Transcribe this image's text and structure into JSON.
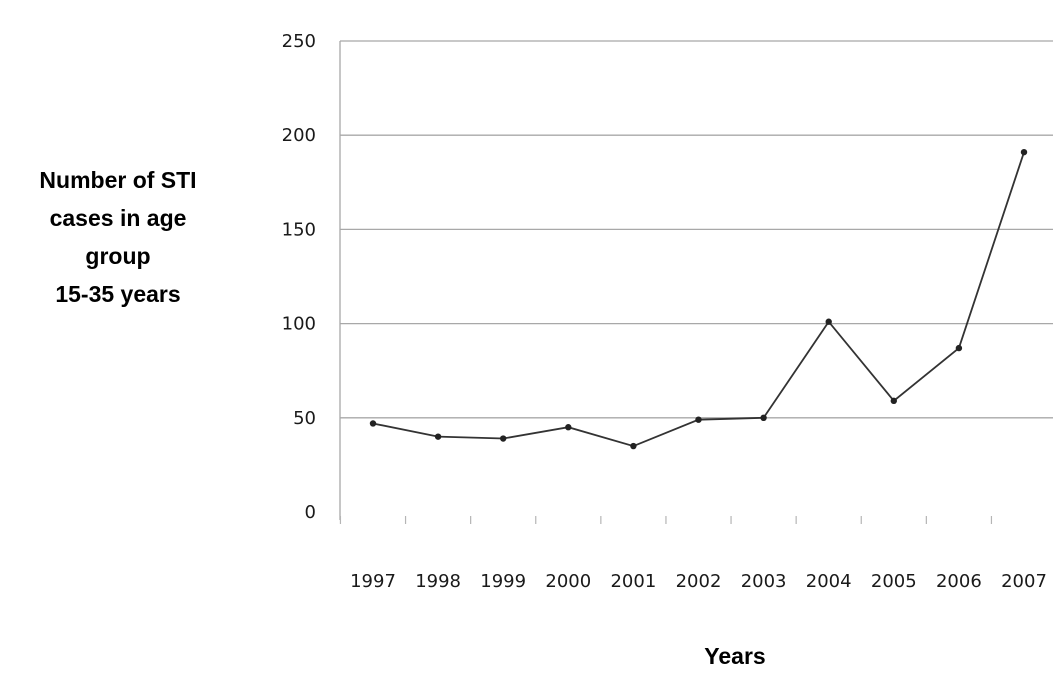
{
  "chart_data": {
    "type": "line",
    "ylabel_lines": [
      "Number of STI",
      "cases in age",
      "group",
      "15-35 years"
    ],
    "xlabel": "Years",
    "categories": [
      "1997",
      "1998",
      "1999",
      "2000",
      "2001",
      "2002",
      "2003",
      "2004",
      "2005",
      "2006",
      "2007"
    ],
    "series": [
      {
        "values": [
          47,
          40,
          39,
          45,
          35,
          49,
          50,
          101,
          59,
          87,
          191
        ]
      }
    ],
    "ylim": [
      0,
      250
    ],
    "yticks": [
      0,
      50,
      100,
      150,
      200,
      250
    ],
    "grid": true,
    "colors": {
      "line": "#333333",
      "grid": "#a8a8a8"
    }
  }
}
